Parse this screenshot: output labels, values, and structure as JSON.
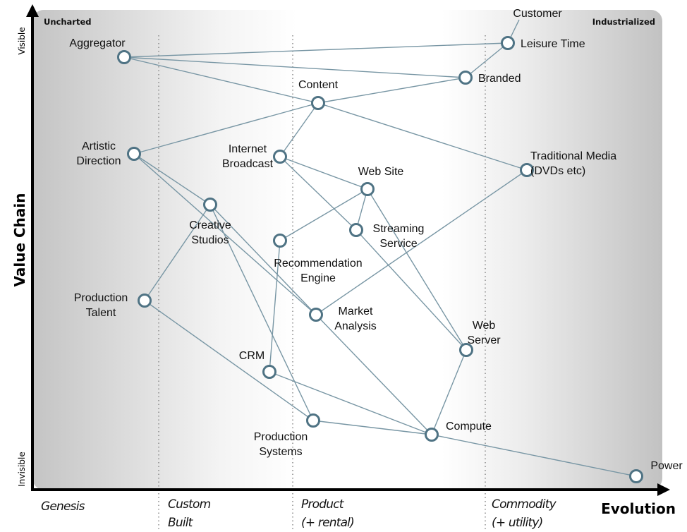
{
  "map": {
    "corner_left": "Uncharted",
    "corner_right": "Industrialized",
    "y_axis": {
      "title": "Value Chain",
      "top": "Visible",
      "bottom": "Invisible"
    },
    "x_axis": {
      "title": "Evolution",
      "stages": [
        {
          "line1": "Genesis",
          "line2": ""
        },
        {
          "line1": "Custom",
          "line2": "Built"
        },
        {
          "line1": "Product",
          "line2": "(+ rental)"
        },
        {
          "line1": "Commodity",
          "line2": "(+ utility)"
        }
      ]
    },
    "colors": {
      "line": "#7896a4",
      "node_stroke": "#4f7384",
      "node_fill": "#ffffff"
    },
    "anchor": "Customer",
    "components": [
      {
        "id": "leisure",
        "label": [
          "Leisure Time"
        ]
      },
      {
        "id": "aggregator",
        "label": [
          "Aggregator"
        ]
      },
      {
        "id": "branded",
        "label": [
          "Branded"
        ]
      },
      {
        "id": "content",
        "label": [
          "Content"
        ]
      },
      {
        "id": "artistic",
        "label": [
          "Artistic",
          "Direction"
        ]
      },
      {
        "id": "broadcast",
        "label": [
          "Internet",
          "Broadcast"
        ]
      },
      {
        "id": "tradmedia",
        "label": [
          "Traditional Media",
          "(DVDs etc)"
        ]
      },
      {
        "id": "website",
        "label": [
          "Web Site"
        ]
      },
      {
        "id": "studios",
        "label": [
          "Creative",
          "Studios"
        ]
      },
      {
        "id": "streaming",
        "label": [
          "Streaming",
          "Service"
        ]
      },
      {
        "id": "recommend",
        "label": [
          "Recommendation",
          "Engine"
        ]
      },
      {
        "id": "talent",
        "label": [
          "Production",
          "Talent"
        ]
      },
      {
        "id": "market",
        "label": [
          "Market",
          "Analysis"
        ]
      },
      {
        "id": "webserver",
        "label": [
          "Web",
          "Server"
        ]
      },
      {
        "id": "crm",
        "label": [
          "CRM"
        ]
      },
      {
        "id": "prodsys",
        "label": [
          "Production",
          "Systems"
        ]
      },
      {
        "id": "compute",
        "label": [
          "Compute"
        ]
      },
      {
        "id": "power",
        "label": [
          "Power"
        ]
      }
    ],
    "links": [
      [
        "customer",
        "leisure"
      ],
      [
        "leisure",
        "aggregator"
      ],
      [
        "leisure",
        "branded"
      ],
      [
        "aggregator",
        "branded"
      ],
      [
        "aggregator",
        "content"
      ],
      [
        "branded",
        "content"
      ],
      [
        "content",
        "artistic"
      ],
      [
        "content",
        "broadcast"
      ],
      [
        "content",
        "tradmedia"
      ],
      [
        "artistic",
        "studios"
      ],
      [
        "artistic",
        "market"
      ],
      [
        "studios",
        "talent"
      ],
      [
        "studios",
        "prodsys"
      ],
      [
        "studios",
        "market"
      ],
      [
        "broadcast",
        "website"
      ],
      [
        "broadcast",
        "streaming"
      ],
      [
        "website",
        "streaming"
      ],
      [
        "website",
        "recommend"
      ],
      [
        "website",
        "webserver"
      ],
      [
        "streaming",
        "webserver"
      ],
      [
        "recommend",
        "crm"
      ],
      [
        "market",
        "tradmedia"
      ],
      [
        "market",
        "compute"
      ],
      [
        "talent",
        "prodsys"
      ],
      [
        "crm",
        "compute"
      ],
      [
        "prodsys",
        "compute"
      ],
      [
        "webserver",
        "compute"
      ],
      [
        "compute",
        "power"
      ]
    ]
  }
}
